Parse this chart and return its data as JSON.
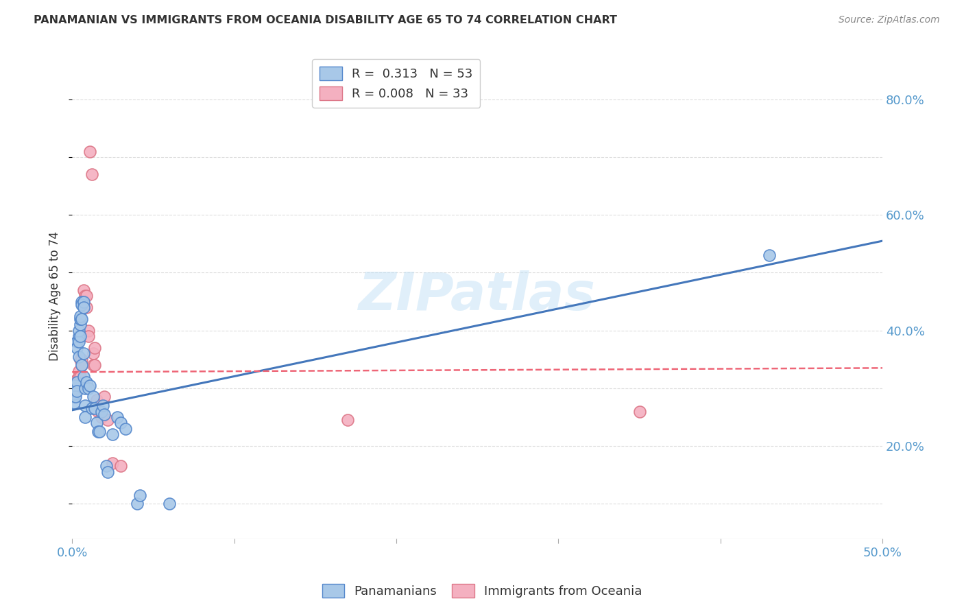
{
  "title": "PANAMANIAN VS IMMIGRANTS FROM OCEANIA DISABILITY AGE 65 TO 74 CORRELATION CHART",
  "source": "Source: ZipAtlas.com",
  "ylabel": "Disability Age 65 to 74",
  "legend_blue_r": "0.313",
  "legend_blue_n": "53",
  "legend_pink_r": "0.008",
  "legend_pink_n": "33",
  "legend_blue_label": "Panamanians",
  "legend_pink_label": "Immigrants from Oceania",
  "blue_color": "#a8c8e8",
  "pink_color": "#f4b0c0",
  "blue_edge_color": "#5588cc",
  "pink_edge_color": "#dd7788",
  "blue_line_color": "#4477bb",
  "pink_line_color": "#ee6677",
  "watermark": "ZIPatlas",
  "blue_scatter": [
    [
      0.001,
      0.285
    ],
    [
      0.001,
      0.275
    ],
    [
      0.001,
      0.29
    ],
    [
      0.001,
      0.295
    ],
    [
      0.002,
      0.3
    ],
    [
      0.002,
      0.295
    ],
    [
      0.002,
      0.305
    ],
    [
      0.002,
      0.285
    ],
    [
      0.003,
      0.31
    ],
    [
      0.003,
      0.295
    ],
    [
      0.003,
      0.38
    ],
    [
      0.003,
      0.37
    ],
    [
      0.004,
      0.39
    ],
    [
      0.004,
      0.38
    ],
    [
      0.004,
      0.355
    ],
    [
      0.004,
      0.4
    ],
    [
      0.005,
      0.41
    ],
    [
      0.005,
      0.42
    ],
    [
      0.005,
      0.425
    ],
    [
      0.005,
      0.39
    ],
    [
      0.006,
      0.45
    ],
    [
      0.006,
      0.445
    ],
    [
      0.006,
      0.42
    ],
    [
      0.006,
      0.34
    ],
    [
      0.007,
      0.45
    ],
    [
      0.007,
      0.44
    ],
    [
      0.007,
      0.36
    ],
    [
      0.007,
      0.32
    ],
    [
      0.008,
      0.3
    ],
    [
      0.008,
      0.27
    ],
    [
      0.008,
      0.25
    ],
    [
      0.009,
      0.31
    ],
    [
      0.01,
      0.3
    ],
    [
      0.011,
      0.305
    ],
    [
      0.012,
      0.265
    ],
    [
      0.013,
      0.285
    ],
    [
      0.014,
      0.265
    ],
    [
      0.015,
      0.24
    ],
    [
      0.016,
      0.225
    ],
    [
      0.017,
      0.225
    ],
    [
      0.018,
      0.26
    ],
    [
      0.019,
      0.27
    ],
    [
      0.02,
      0.255
    ],
    [
      0.021,
      0.165
    ],
    [
      0.022,
      0.155
    ],
    [
      0.025,
      0.22
    ],
    [
      0.028,
      0.25
    ],
    [
      0.03,
      0.24
    ],
    [
      0.033,
      0.23
    ],
    [
      0.04,
      0.1
    ],
    [
      0.042,
      0.115
    ],
    [
      0.06,
      0.1
    ],
    [
      0.43,
      0.53
    ]
  ],
  "pink_scatter": [
    [
      0.001,
      0.29
    ],
    [
      0.001,
      0.285
    ],
    [
      0.002,
      0.295
    ],
    [
      0.002,
      0.31
    ],
    [
      0.003,
      0.305
    ],
    [
      0.003,
      0.315
    ],
    [
      0.004,
      0.33
    ],
    [
      0.004,
      0.32
    ],
    [
      0.005,
      0.35
    ],
    [
      0.005,
      0.32
    ],
    [
      0.006,
      0.35
    ],
    [
      0.006,
      0.34
    ],
    [
      0.007,
      0.47
    ],
    [
      0.008,
      0.46
    ],
    [
      0.009,
      0.46
    ],
    [
      0.009,
      0.44
    ],
    [
      0.01,
      0.4
    ],
    [
      0.01,
      0.39
    ],
    [
      0.011,
      0.71
    ],
    [
      0.012,
      0.67
    ],
    [
      0.013,
      0.36
    ],
    [
      0.013,
      0.34
    ],
    [
      0.014,
      0.37
    ],
    [
      0.014,
      0.34
    ],
    [
      0.015,
      0.28
    ],
    [
      0.016,
      0.26
    ],
    [
      0.018,
      0.25
    ],
    [
      0.02,
      0.285
    ],
    [
      0.022,
      0.245
    ],
    [
      0.025,
      0.17
    ],
    [
      0.03,
      0.165
    ],
    [
      0.17,
      0.245
    ],
    [
      0.35,
      0.26
    ]
  ],
  "blue_trendline_x": [
    0.0,
    0.5
  ],
  "blue_trendline_y": [
    0.262,
    0.555
  ],
  "pink_trendline_x": [
    0.0,
    0.5
  ],
  "pink_trendline_y": [
    0.328,
    0.335
  ],
  "xmin": 0.0,
  "xmax": 0.5,
  "ymin": 0.04,
  "ymax": 0.88,
  "ytick_vals": [
    0.2,
    0.4,
    0.6,
    0.8
  ],
  "ytick_labels": [
    "20.0%",
    "40.0%",
    "60.0%",
    "80.0%"
  ],
  "xtick_vals": [
    0.0,
    0.1,
    0.2,
    0.3,
    0.4,
    0.5
  ],
  "xtick_labels": [
    "0.0%",
    "",
    "",
    "",
    "",
    "50.0%"
  ],
  "grid_color": "#dddddd",
  "tick_color": "#5599cc",
  "title_color": "#333333",
  "source_color": "#888888"
}
